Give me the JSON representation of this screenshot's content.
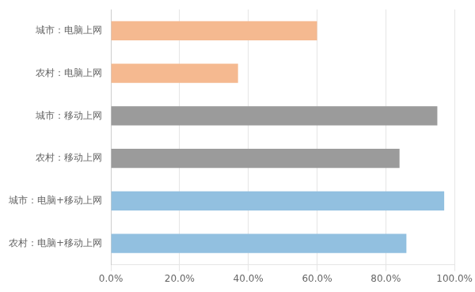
{
  "chart_data": {
    "type": "bar",
    "orientation": "horizontal",
    "categories": [
      "城市：电脑上网",
      "农村：电脑上网",
      "城市：移动上网",
      "农村：移动上网",
      "城市：电脑+移动上网",
      "农村：电脑+移动上网"
    ],
    "values": [
      0.6,
      0.37,
      0.95,
      0.84,
      0.97,
      0.86
    ],
    "colors": [
      "#F5B990",
      "#F5B990",
      "#9B9B9B",
      "#9B9B9B",
      "#92C0E0",
      "#92C0E0"
    ],
    "xlim": [
      0,
      1.0
    ],
    "xticks": [
      {
        "value": 0.0,
        "label": "0.0%"
      },
      {
        "value": 0.2,
        "label": "20.0%"
      },
      {
        "value": 0.4,
        "label": "40.0%"
      },
      {
        "value": 0.6,
        "label": "60.0%"
      },
      {
        "value": 0.8,
        "label": "80.0%"
      },
      {
        "value": 1.0,
        "label": "100.0%"
      }
    ],
    "grid": "x"
  }
}
